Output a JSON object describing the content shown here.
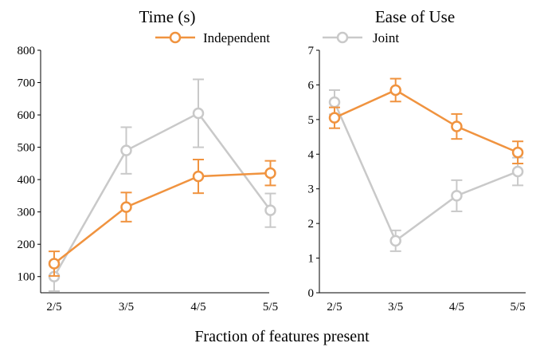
{
  "colors": {
    "independent": "#F0933F",
    "joint": "#C9C9C9"
  },
  "legend": {
    "items": [
      "Independent",
      "Joint"
    ]
  },
  "xlabel": "Fraction of features present",
  "chart_data": [
    {
      "type": "line",
      "title": "Time (s)",
      "categories": [
        "2/5",
        "3/5",
        "4/5",
        "5/5"
      ],
      "ylim": [
        50,
        800
      ],
      "yticks": [
        100,
        200,
        300,
        400,
        500,
        600,
        700,
        800
      ],
      "series": [
        {
          "name": "Independent",
          "values": [
            140,
            315,
            410,
            420
          ],
          "err": [
            38,
            45,
            52,
            38
          ]
        },
        {
          "name": "Joint",
          "values": [
            100,
            490,
            605,
            305
          ],
          "err": [
            45,
            72,
            105,
            52
          ]
        }
      ]
    },
    {
      "type": "line",
      "title": "Ease of Use",
      "categories": [
        "2/5",
        "3/5",
        "4/5",
        "5/5"
      ],
      "ylim": [
        0,
        7
      ],
      "yticks": [
        0,
        1,
        2,
        3,
        4,
        5,
        6,
        7
      ],
      "series": [
        {
          "name": "Independent",
          "values": [
            5.05,
            5.85,
            4.8,
            4.05
          ],
          "err": [
            0.3,
            0.33,
            0.36,
            0.32
          ]
        },
        {
          "name": "Joint",
          "values": [
            5.5,
            1.5,
            2.8,
            3.5
          ],
          "err": [
            0.35,
            0.3,
            0.45,
            0.4
          ]
        }
      ]
    }
  ]
}
